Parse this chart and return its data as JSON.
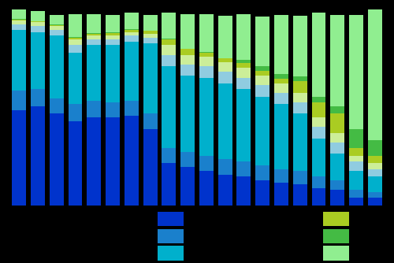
{
  "n_bars": 20,
  "colors": [
    "#0033cc",
    "#1a7fcc",
    "#00b8cc",
    "#b8dde8",
    "#90d0d0",
    "#ccee99",
    "#aacc22",
    "#44bb44",
    "#90e090"
  ],
  "layer_colors": [
    "#0033cc",
    "#1a80cc",
    "#00b0cc",
    "#90d0e0",
    "#ccee99",
    "#aacc22",
    "#44bb44",
    "#90ee90"
  ],
  "background": "#000000",
  "bar_width": 0.75,
  "bar_data": [
    [
      0.5,
      0.1,
      0.32,
      0.03,
      0.02,
      0.005,
      0.003,
      0.05
    ],
    [
      0.52,
      0.09,
      0.3,
      0.03,
      0.02,
      0.005,
      0.003,
      0.05
    ],
    [
      0.48,
      0.08,
      0.33,
      0.03,
      0.02,
      0.005,
      0.005,
      0.05
    ],
    [
      0.44,
      0.09,
      0.27,
      0.04,
      0.03,
      0.01,
      0.005,
      0.12
    ],
    [
      0.46,
      0.09,
      0.29,
      0.03,
      0.02,
      0.01,
      0.003,
      0.1
    ],
    [
      0.46,
      0.08,
      0.3,
      0.03,
      0.02,
      0.015,
      0.003,
      0.09
    ],
    [
      0.47,
      0.08,
      0.31,
      0.03,
      0.02,
      0.01,
      0.003,
      0.09
    ],
    [
      0.4,
      0.08,
      0.37,
      0.03,
      0.02,
      0.015,
      0.003,
      0.08
    ],
    [
      0.22,
      0.08,
      0.43,
      0.06,
      0.05,
      0.03,
      0.003,
      0.14
    ],
    [
      0.2,
      0.08,
      0.4,
      0.06,
      0.05,
      0.03,
      0.003,
      0.18
    ],
    [
      0.18,
      0.08,
      0.41,
      0.06,
      0.05,
      0.02,
      0.003,
      0.2
    ],
    [
      0.16,
      0.08,
      0.4,
      0.06,
      0.05,
      0.02,
      0.003,
      0.22
    ],
    [
      0.15,
      0.08,
      0.38,
      0.06,
      0.05,
      0.025,
      0.02,
      0.24
    ],
    [
      0.13,
      0.08,
      0.36,
      0.06,
      0.05,
      0.025,
      0.025,
      0.26
    ],
    [
      0.12,
      0.07,
      0.34,
      0.06,
      0.05,
      0.025,
      0.025,
      0.31
    ],
    [
      0.11,
      0.07,
      0.3,
      0.06,
      0.05,
      0.06,
      0.025,
      0.32
    ],
    [
      0.09,
      0.06,
      0.2,
      0.06,
      0.05,
      0.08,
      0.03,
      0.44
    ],
    [
      0.08,
      0.05,
      0.14,
      0.06,
      0.05,
      0.1,
      0.04,
      0.48
    ],
    [
      0.04,
      0.04,
      0.1,
      0.05,
      0.03,
      0.04,
      0.1,
      0.6
    ],
    [
      0.04,
      0.03,
      0.08,
      0.04,
      0.03,
      0.04,
      0.08,
      0.69
    ]
  ],
  "legend_colors_left": [
    "#0033cc",
    "#1a80cc",
    "#00b0cc"
  ],
  "legend_colors_right": [
    "#aacc22",
    "#44bb44",
    "#90ee90"
  ]
}
